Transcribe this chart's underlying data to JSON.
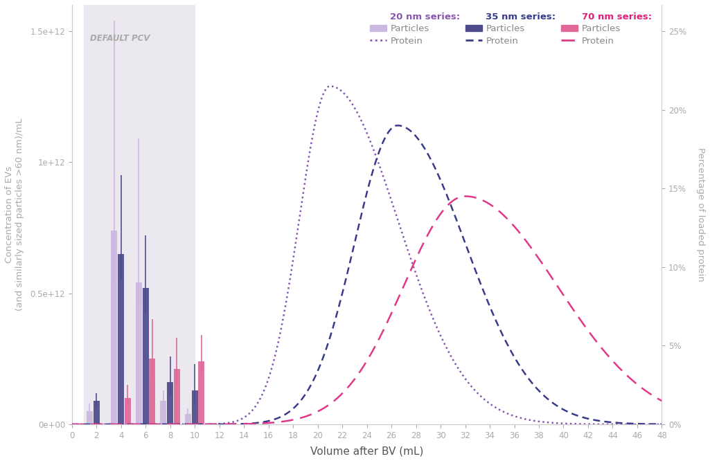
{
  "xlabel": "Volume after BV (mL)",
  "ylabel_left": "Concentration of EVs\n(and similarly sized particles >60 nm)/mL",
  "ylabel_right": "Percentage of loaded protein",
  "default_pcv_label": "DEFAULT PCV",
  "bar_positions": [
    2,
    4,
    6,
    8,
    10
  ],
  "bar_width": 0.55,
  "bar_20nm": [
    50000000000.0,
    740000000000.0,
    540000000000.0,
    90000000000.0,
    40000000000.0
  ],
  "bar_35nm": [
    90000000000.0,
    650000000000.0,
    520000000000.0,
    160000000000.0,
    130000000000.0
  ],
  "bar_70nm": [
    0,
    100000000000.0,
    250000000000.0,
    210000000000.0,
    240000000000.0
  ],
  "err_20nm_lo": [
    30000000000.0,
    200000000000.0,
    100000000000.0,
    40000000000.0,
    20000000000.0
  ],
  "err_20nm_hi": [
    30000000000.0,
    800000000000.0,
    550000000000.0,
    40000000000.0,
    20000000000.0
  ],
  "err_35nm_lo": [
    30000000000.0,
    100000000000.0,
    100000000000.0,
    50000000000.0,
    50000000000.0
  ],
  "err_35nm_hi": [
    30000000000.0,
    300000000000.0,
    200000000000.0,
    100000000000.0,
    100000000000.0
  ],
  "err_70nm_lo": [
    0,
    30000000000.0,
    80000000000.0,
    60000000000.0,
    50000000000.0
  ],
  "err_70nm_hi": [
    0,
    50000000000.0,
    150000000000.0,
    120000000000.0,
    100000000000.0
  ],
  "color_20nm_bar": "#cbb8e0",
  "color_35nm_bar": "#4e4b8a",
  "color_70nm_bar": "#e06898",
  "color_20nm_line": "#8858b0",
  "color_35nm_line": "#3a3a8c",
  "color_70nm_line": "#e03888",
  "ylim_left": [
    0,
    1600000000000.0
  ],
  "ylim_right": [
    0,
    0.2667
  ],
  "xlim": [
    0,
    48
  ],
  "xticks": [
    0,
    2,
    4,
    6,
    8,
    10,
    12,
    14,
    16,
    18,
    20,
    22,
    24,
    26,
    28,
    30,
    32,
    34,
    36,
    38,
    40,
    42,
    44,
    46,
    48
  ],
  "pcv_start": 1,
  "pcv_end": 10,
  "protein_peak_20nm_x": 21.0,
  "protein_peak_20nm_y": 0.215,
  "protein_sigma_20nm_l": 2.5,
  "protein_sigma_20nm_r": 5.5,
  "protein_peak_35nm_x": 26.5,
  "protein_peak_35nm_y": 0.19,
  "protein_sigma_35nm_l": 3.5,
  "protein_sigma_35nm_r": 5.5,
  "protein_peak_70nm_x": 32.0,
  "protein_peak_70nm_y": 0.145,
  "protein_sigma_70nm_l": 5.0,
  "protein_sigma_70nm_r": 7.5,
  "legend_series": [
    "20 nm series:",
    "35 nm series:",
    "70 nm series:"
  ],
  "legend_series_colors": [
    "#8858b0",
    "#3a3a8c",
    "#e0207a"
  ],
  "background_color": "#ffffff",
  "pcv_color": "#ece8f0",
  "left_ytick_labels": [
    "0e+00",
    "0.5e+12",
    "1e+12",
    "1.5e+12"
  ],
  "left_ytick_vals": [
    0,
    500000000000.0,
    1000000000000.0,
    1500000000000.0
  ],
  "right_ytick_vals": [
    0,
    0.05,
    0.1,
    0.15,
    0.2,
    0.25
  ],
  "right_ytick_labels": [
    "0%",
    "5%",
    "10%",
    "15%",
    "20%",
    "25%"
  ]
}
